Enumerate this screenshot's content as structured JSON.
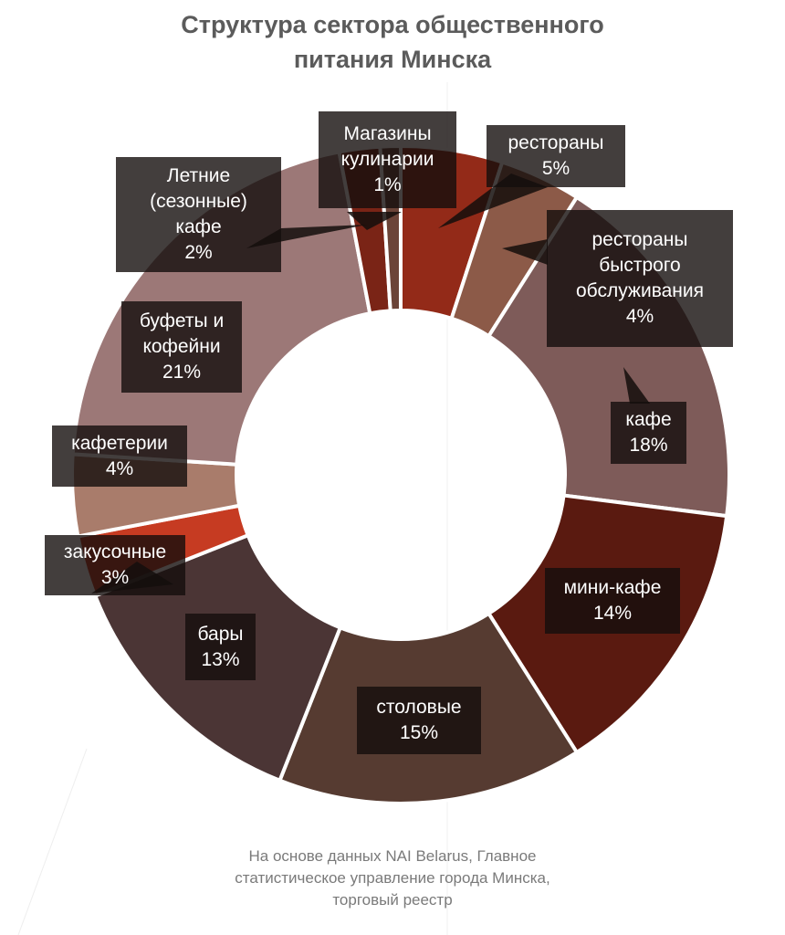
{
  "chart_data": {
    "type": "pie",
    "variant": "donut",
    "title": "Структура сектора общественного питания Минска",
    "title_lines": [
      "Структура сектора общественного",
      "питания Минска"
    ],
    "start": "top",
    "direction": "clockwise",
    "slices": [
      {
        "name": "рестораны",
        "value": 5,
        "label": "5%",
        "color": "#932a18"
      },
      {
        "name": "рестораны быстрого обслуживания",
        "value": 4,
        "label": "4%",
        "color": "#8c5a48"
      },
      {
        "name": "кафе",
        "value": 18,
        "label": "18%",
        "color": "#7e5b59"
      },
      {
        "name": "мини-кафе",
        "value": 14,
        "label": "14%",
        "color": "#5a1a10"
      },
      {
        "name": "столовые",
        "value": 15,
        "label": "15%",
        "color": "#563b31"
      },
      {
        "name": "бары",
        "value": 13,
        "label": "13%",
        "color": "#4b3535"
      },
      {
        "name": "закусочные",
        "value": 3,
        "label": "3%",
        "color": "#c63b22"
      },
      {
        "name": "кафетерии",
        "value": 4,
        "label": "4%",
        "color": "#a97c6b"
      },
      {
        "name": "буфеты и кофейни",
        "value": 21,
        "label": "21%",
        "color": "#9c7877"
      },
      {
        "name": "Летние (сезонные) кафе",
        "value": 2,
        "label": "2%",
        "color": "#7a2416"
      },
      {
        "name": "Магазины кулинарии",
        "value": 1,
        "label": "1%",
        "color": "#6b4438"
      }
    ],
    "source": [
      "На основе данных NAI Belarus, Главное",
      "статистическое управление города Минска,",
      "торговый реестр"
    ]
  }
}
